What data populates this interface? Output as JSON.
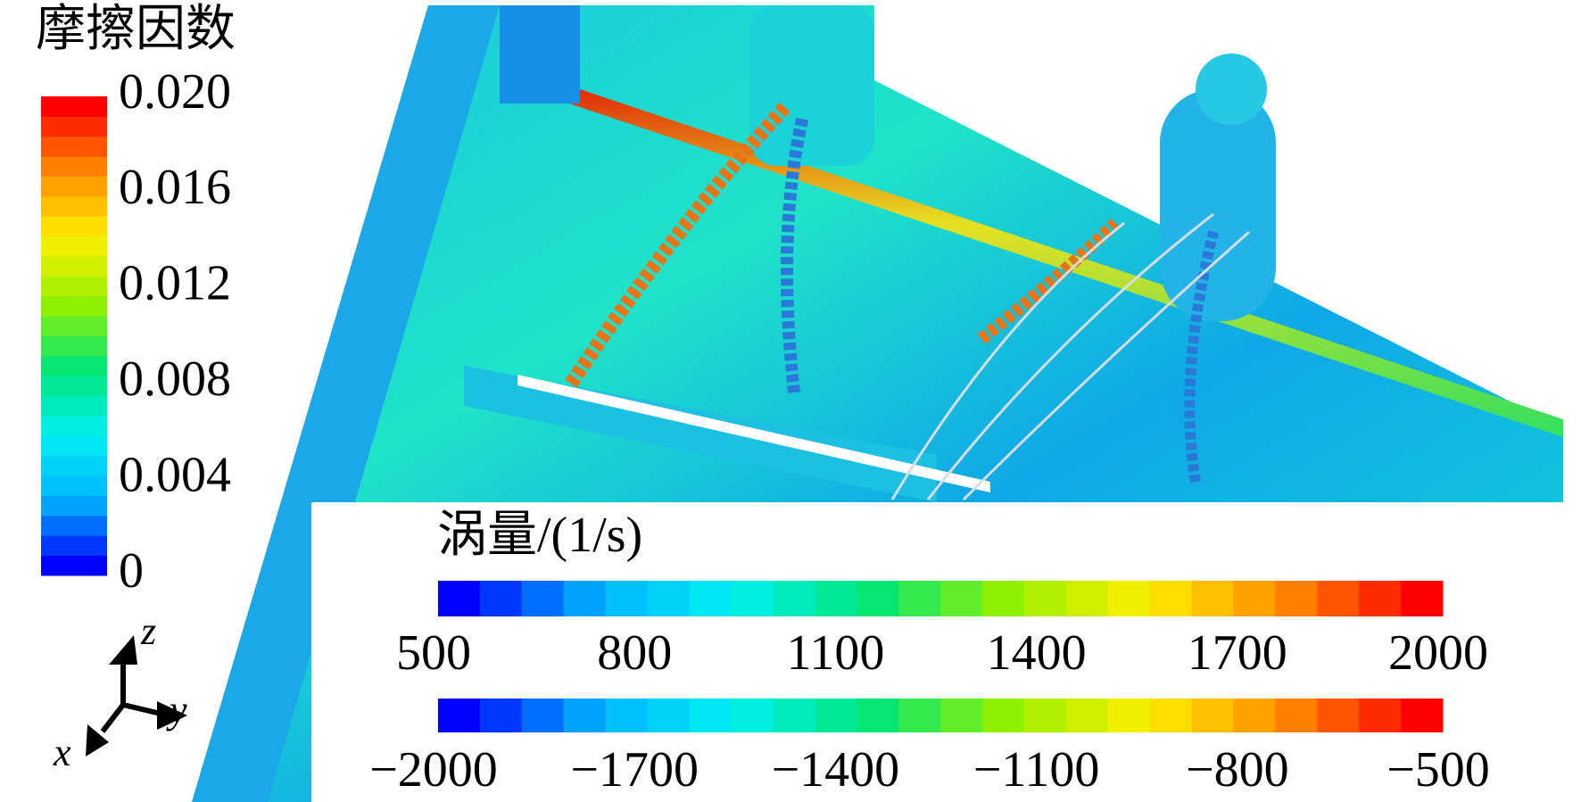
{
  "friction_legend": {
    "title": "摩擦因数",
    "ticks": [
      "0",
      "0.004",
      "0.008",
      "0.012",
      "0.016",
      "0.020"
    ]
  },
  "vorticity_legend": {
    "title": "涡量/(1/s)",
    "positive_ticks": [
      "500",
      "800",
      "1100",
      "1400",
      "1700",
      "2000"
    ],
    "negative_ticks": [
      "−2000",
      "−1700",
      "−1400",
      "−1100",
      "−800",
      "−500"
    ]
  },
  "axes": {
    "z": "z",
    "y": "y",
    "x": "x"
  }
}
